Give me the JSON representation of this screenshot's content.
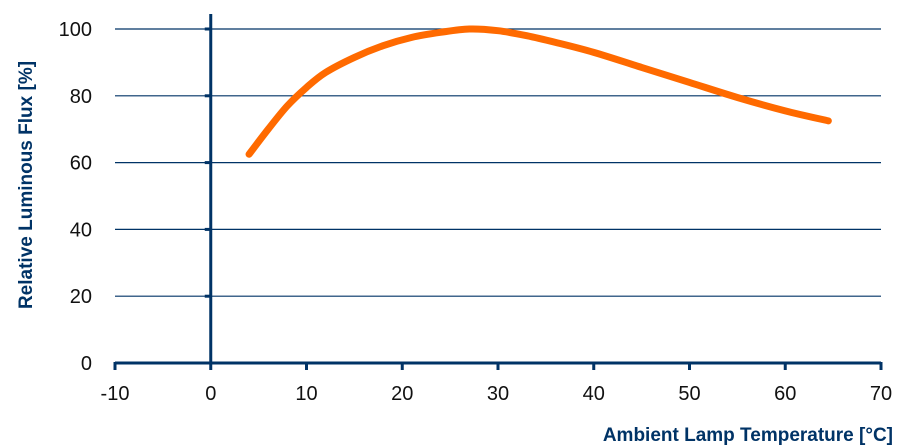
{
  "chart_data": {
    "type": "line",
    "title": "",
    "xlabel": "Ambient Lamp Temperature [°C]",
    "ylabel": "Relative Luminous Flux [%]",
    "xlim": [
      -10,
      70
    ],
    "ylim": [
      0,
      100
    ],
    "xticks": [
      "-10",
      "0",
      "10",
      "20",
      "30",
      "40",
      "50",
      "60",
      "70"
    ],
    "yticks": [
      "0",
      "20",
      "40",
      "60",
      "80",
      "100"
    ],
    "grid": "horizontal",
    "legend": "none",
    "series": [
      {
        "color": "#ff6a00",
        "x": [
          4,
          6,
          8,
          10,
          12,
          15,
          18,
          21,
          24,
          27,
          30,
          33,
          36,
          40,
          45,
          50,
          55,
          60,
          64.5
        ],
        "y": [
          62.5,
          70,
          77,
          82.5,
          87,
          91.5,
          95,
          97.5,
          99,
          100,
          99.5,
          98,
          96,
          93,
          88.5,
          84,
          79.5,
          75.5,
          72.5
        ]
      }
    ],
    "colors": {
      "axis": "#003366",
      "grid": "#003366",
      "text": "#111111",
      "line": "#ff6a00"
    }
  }
}
